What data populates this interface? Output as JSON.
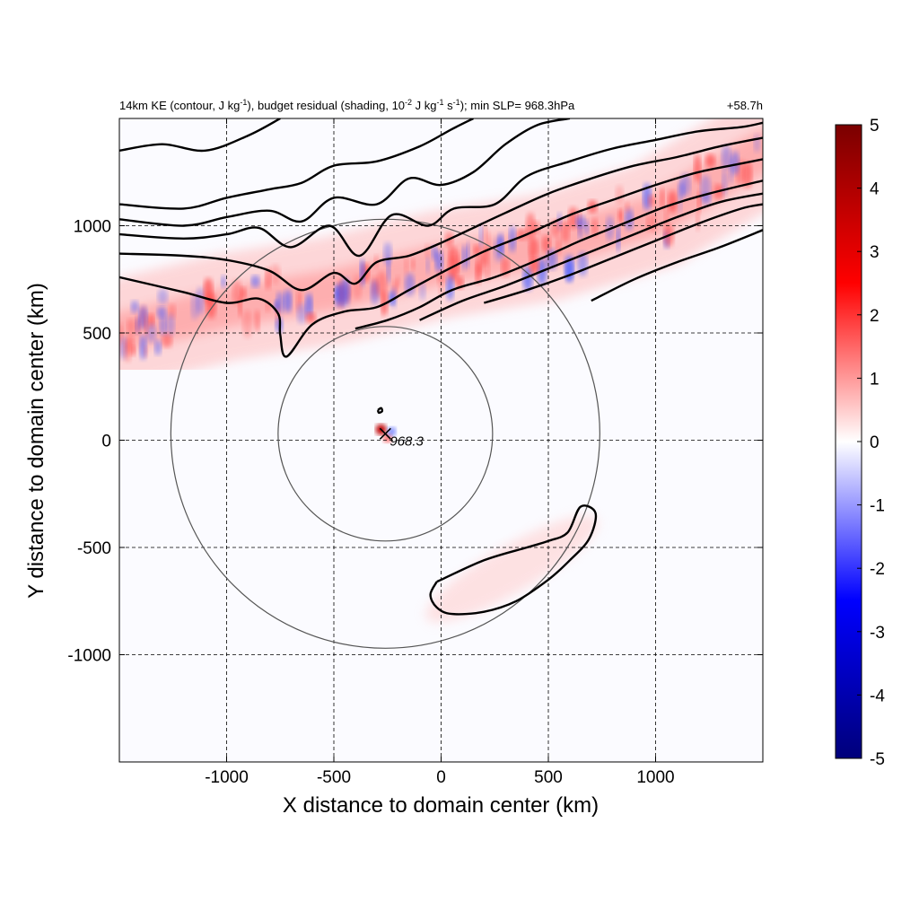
{
  "chart_data": {
    "type": "heatmap",
    "title_main": "14km KE (contour, J kg",
    "title_sup1": "-1",
    "title_mid": "), budget residual (shading, 10",
    "title_sup2": "-2",
    "title_mid2": " J kg",
    "title_sup3": "-1",
    "title_mid3": " s",
    "title_sup4": "-1",
    "title_end": "); min SLP= 968.3hPa",
    "time_label": "+58.7h",
    "xlabel": "X distance to domain center (km)",
    "ylabel": "Y distance to domain center (km)",
    "xlim": [
      -1500,
      1500
    ],
    "ylim": [
      -1500,
      1500
    ],
    "xticks": [
      -1000,
      -500,
      0,
      500,
      1000
    ],
    "yticks": [
      1000,
      500,
      0,
      -500,
      -1000
    ],
    "xtick_labels": [
      "-1000",
      "-500",
      "0",
      "500",
      "1000"
    ],
    "ytick_labels": [
      "1000",
      "500",
      "0",
      "-500",
      "-1000"
    ],
    "grid": true,
    "colorbar": {
      "min": -5,
      "max": 5,
      "ticks": [
        5,
        4,
        3,
        2,
        1,
        0,
        -1,
        -2,
        -3,
        -4,
        -5
      ],
      "tick_labels": [
        "5",
        "4",
        "3",
        "2",
        "1",
        "0",
        "-1",
        "-2",
        "-3",
        "-4",
        "-5"
      ],
      "colors": [
        "#00007a",
        "#0000ff",
        "#ffffff",
        "#ff0000",
        "#7a0000"
      ]
    },
    "storm_center": {
      "x": -260,
      "y": 30,
      "label": "968.3"
    },
    "range_rings_km": [
      500,
      1000
    ],
    "positive_band": {
      "description_values_range": [
        0.5,
        3.5
      ],
      "path": [
        [
          -1500,
          500
        ],
        [
          -1000,
          620
        ],
        [
          -500,
          700
        ],
        [
          0,
          820
        ],
        [
          500,
          900
        ],
        [
          1000,
          1050
        ],
        [
          1500,
          1350
        ]
      ]
    },
    "ke_contours": [
      [
        [
          -1500,
          1350
        ],
        [
          -1300,
          1380
        ],
        [
          -1100,
          1350
        ],
        [
          -900,
          1420
        ],
        [
          -750,
          1500
        ]
      ],
      [
        [
          -1500,
          1100
        ],
        [
          -1200,
          1080
        ],
        [
          -1000,
          1130
        ],
        [
          -800,
          1170
        ],
        [
          -650,
          1200
        ],
        [
          -500,
          1280
        ],
        [
          -300,
          1300
        ],
        [
          -100,
          1370
        ],
        [
          50,
          1450
        ],
        [
          150,
          1500
        ]
      ],
      [
        [
          -1500,
          1030
        ],
        [
          -1200,
          1000
        ],
        [
          -1000,
          1040
        ],
        [
          -800,
          1070
        ],
        [
          -650,
          1020
        ],
        [
          -500,
          1130
        ],
        [
          -300,
          1100
        ],
        [
          -150,
          1220
        ],
        [
          0,
          1190
        ],
        [
          150,
          1250
        ],
        [
          300,
          1380
        ],
        [
          450,
          1470
        ],
        [
          600,
          1500
        ]
      ],
      [
        [
          -1500,
          960
        ],
        [
          -1200,
          940
        ],
        [
          -1000,
          960
        ],
        [
          -850,
          990
        ],
        [
          -700,
          900
        ],
        [
          -520,
          1000
        ],
        [
          -380,
          860
        ],
        [
          -230,
          1050
        ],
        [
          -60,
          1000
        ],
        [
          60,
          1080
        ],
        [
          250,
          1100
        ],
        [
          400,
          1230
        ],
        [
          600,
          1300
        ],
        [
          800,
          1360
        ],
        [
          1000,
          1400
        ],
        [
          1200,
          1440
        ],
        [
          1400,
          1460
        ],
        [
          1500,
          1480
        ]
      ],
      [
        [
          -1500,
          870
        ],
        [
          -1200,
          860
        ],
        [
          -1000,
          840
        ],
        [
          -800,
          790
        ],
        [
          -650,
          700
        ],
        [
          -500,
          780
        ],
        [
          -400,
          730
        ],
        [
          -300,
          830
        ],
        [
          -150,
          860
        ],
        [
          0,
          920
        ],
        [
          150,
          990
        ],
        [
          300,
          1060
        ],
        [
          500,
          1150
        ],
        [
          700,
          1220
        ],
        [
          900,
          1280
        ],
        [
          1100,
          1320
        ],
        [
          1300,
          1370
        ],
        [
          1500,
          1410
        ]
      ],
      [
        [
          -1500,
          760
        ],
        [
          -1200,
          690
        ],
        [
          -1000,
          640
        ],
        [
          -850,
          660
        ],
        [
          -760,
          590
        ],
        [
          -750,
          490
        ],
        [
          -720,
          390
        ],
        [
          -600,
          540
        ],
        [
          -450,
          600
        ],
        [
          -300,
          620
        ],
        [
          -150,
          700
        ],
        [
          0,
          780
        ],
        [
          200,
          880
        ],
        [
          400,
          960
        ],
        [
          600,
          1050
        ],
        [
          800,
          1120
        ],
        [
          1000,
          1190
        ],
        [
          1200,
          1250
        ],
        [
          1400,
          1290
        ],
        [
          1500,
          1310
        ]
      ],
      [
        [
          -400,
          520
        ],
        [
          -250,
          560
        ],
        [
          -100,
          620
        ],
        [
          50,
          700
        ],
        [
          250,
          760
        ],
        [
          450,
          840
        ],
        [
          650,
          930
        ],
        [
          850,
          1010
        ],
        [
          1050,
          1090
        ],
        [
          1250,
          1150
        ],
        [
          1500,
          1210
        ]
      ],
      [
        [
          -100,
          560
        ],
        [
          100,
          650
        ],
        [
          300,
          720
        ],
        [
          500,
          800
        ],
        [
          700,
          880
        ],
        [
          900,
          960
        ],
        [
          1100,
          1040
        ],
        [
          1300,
          1110
        ],
        [
          1500,
          1150
        ]
      ],
      [
        [
          200,
          640
        ],
        [
          400,
          700
        ],
        [
          600,
          770
        ],
        [
          800,
          850
        ],
        [
          1000,
          930
        ],
        [
          1200,
          1010
        ],
        [
          1400,
          1080
        ],
        [
          1500,
          1100
        ]
      ],
      [
        [
          700,
          650
        ],
        [
          900,
          750
        ],
        [
          1100,
          830
        ],
        [
          1300,
          900
        ],
        [
          1500,
          980
        ]
      ],
      [
        [
          -20,
          -660
        ],
        [
          200,
          -560
        ],
        [
          400,
          -500
        ],
        [
          500,
          -470
        ],
        [
          590,
          -430
        ],
        [
          650,
          -310
        ],
        [
          720,
          -340
        ],
        [
          690,
          -460
        ],
        [
          600,
          -560
        ],
        [
          500,
          -650
        ],
        [
          350,
          -750
        ],
        [
          200,
          -800
        ],
        [
          50,
          -810
        ],
        [
          -20,
          -780
        ],
        [
          -50,
          -720
        ],
        [
          -20,
          -660
        ]
      ],
      [
        [
          -295,
          140
        ],
        [
          -280,
          150
        ],
        [
          -275,
          135
        ],
        [
          -290,
          128
        ],
        [
          -295,
          140
        ]
      ]
    ]
  }
}
